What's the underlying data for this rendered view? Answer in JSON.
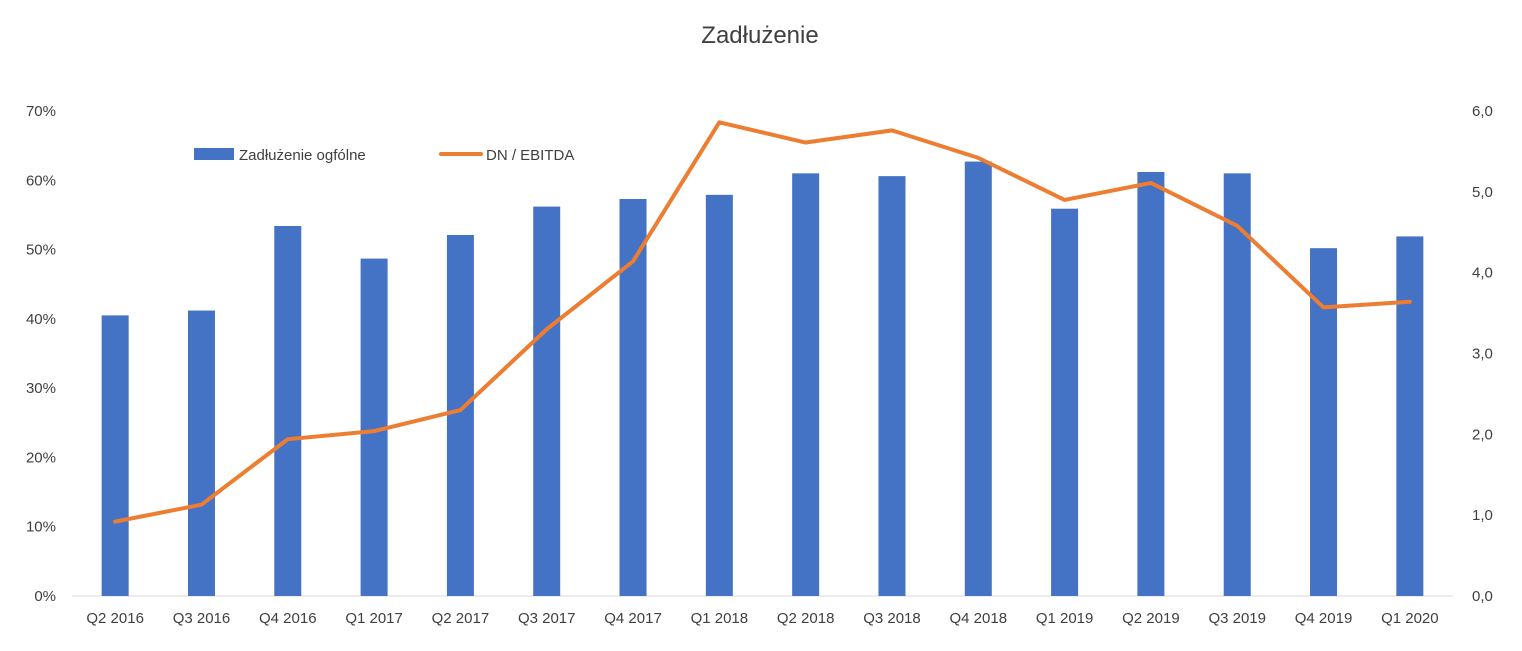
{
  "chart_data": {
    "type": "bar",
    "title": "Zadłużenie",
    "categories": [
      "Q2 2016",
      "Q3 2016",
      "Q4 2016",
      "Q1 2017",
      "Q2 2017",
      "Q3 2017",
      "Q4 2017",
      "Q1 2018",
      "Q2 2018",
      "Q3 2018",
      "Q4 2018",
      "Q1 2019",
      "Q2 2019",
      "Q3 2019",
      "Q4 2019",
      "Q1 2020"
    ],
    "series": [
      {
        "name": "Zadłużenie ogfólne",
        "type": "bar",
        "axis": "left",
        "color": "#4472C4",
        "values": [
          40.5,
          41.2,
          53.4,
          48.7,
          52.1,
          56.2,
          57.3,
          57.9,
          61.0,
          60.6,
          62.7,
          55.9,
          61.2,
          61.0,
          50.2,
          51.9
        ]
      },
      {
        "name": "DN / EBITDA",
        "type": "line",
        "axis": "right",
        "color": "#ED7D31",
        "values": [
          0.92,
          1.13,
          1.94,
          2.04,
          2.3,
          3.3,
          4.14,
          5.86,
          5.61,
          5.76,
          5.42,
          4.9,
          5.11,
          4.58,
          3.57,
          3.64
        ]
      }
    ],
    "y_left": {
      "range": [
        0,
        70
      ],
      "ticks": [
        "0%",
        "10%",
        "20%",
        "30%",
        "40%",
        "50%",
        "60%",
        "70%"
      ]
    },
    "y_right": {
      "range": [
        0,
        6
      ],
      "ticks": [
        "0,0",
        "1,0",
        "2,0",
        "3,0",
        "4,0",
        "5,0",
        "6,0"
      ]
    },
    "grid": false,
    "legend_position": "top-left"
  }
}
